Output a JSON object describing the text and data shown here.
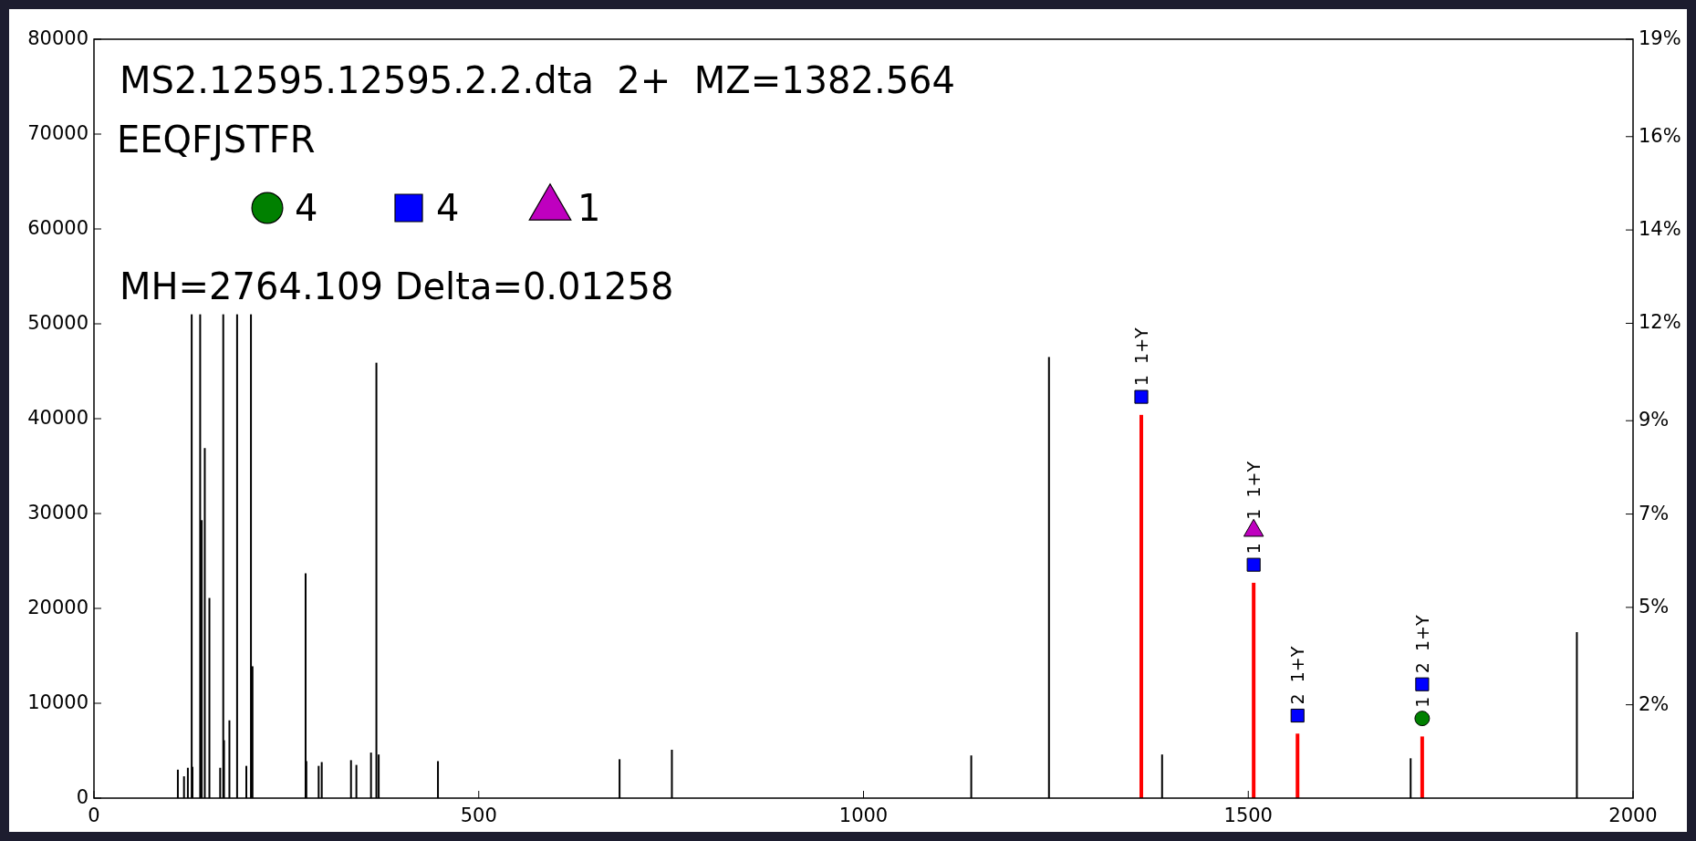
{
  "chart_data": {
    "type": "bar",
    "title": "MS2.12595.12595.2.2.dta  2+  MZ=1382.564",
    "subtitle": "EEQFJSTFR",
    "annotations": [
      "MH=2764.109 Delta=0.01258",
      {
        "text": "1  1+Y",
        "x": 1361,
        "y": 42300
      },
      {
        "text": "1  1+Y",
        "x": 1507,
        "y": 28200
      },
      {
        "text": "1",
        "x": 1507,
        "y": 24600
      },
      {
        "text": "2  1+Y",
        "x": 1564,
        "y": 8700
      },
      {
        "text": "2  1+Y",
        "x": 1726,
        "y": 12000
      },
      {
        "text": "1",
        "x": 1726,
        "y": 8400
      }
    ],
    "xlim": [
      0,
      2000
    ],
    "xticks": [
      0,
      500,
      1000,
      1500,
      2000
    ],
    "ylim": [
      0,
      80000
    ],
    "yticks": [
      0,
      10000,
      20000,
      30000,
      40000,
      50000,
      60000,
      70000,
      80000
    ],
    "y2lim": [
      0,
      18.7
    ],
    "y2ticks": [
      {
        "value": 2.3,
        "label": "2%"
      },
      {
        "value": 4.7,
        "label": "5%"
      },
      {
        "value": 7.0,
        "label": "7%"
      },
      {
        "value": 9.3,
        "label": "9%"
      },
      {
        "value": 11.7,
        "label": "12%"
      },
      {
        "value": 14.0,
        "label": "14%"
      },
      {
        "value": 16.3,
        "label": "16%"
      },
      {
        "value": 18.7,
        "label": "19%"
      }
    ],
    "legend": "top left",
    "series": [
      {
        "color": "#000000",
        "x": [
          109,
          117,
          122,
          127,
          128,
          138,
          140,
          144,
          150,
          164,
          168,
          169,
          176,
          186,
          198,
          204,
          206,
          275,
          276,
          292,
          296,
          334,
          341,
          360,
          367,
          370,
          447,
          683,
          751,
          1140,
          1241,
          1388,
          1711,
          1927
        ],
        "values": [
          3000,
          2300,
          3200,
          51000,
          3300,
          51000,
          29300,
          36900,
          21100,
          3200,
          51000,
          6100,
          8200,
          51000,
          3400,
          51000,
          13900,
          23700,
          3900,
          3400,
          3800,
          4000,
          3500,
          4800,
          45900,
          4600,
          3900,
          4100,
          5100,
          4500,
          46500,
          4600,
          4200,
          17500
        ]
      },
      {
        "color": "#ff0000",
        "x": [
          1361,
          1507,
          1564,
          1726
        ],
        "values": [
          40400,
          22700,
          6800,
          6500
        ]
      },
      {
        "type": "scatter",
        "name": "4",
        "color": "#008000",
        "marker": "circle",
        "x": [
          1726
        ],
        "values": [
          8400
        ]
      },
      {
        "type": "scatter",
        "name": "4",
        "color": "#0000ff",
        "marker": "square",
        "x": [
          1361,
          1507,
          1564,
          1726
        ],
        "values": [
          42300,
          24600,
          8700,
          12000
        ]
      },
      {
        "type": "scatter",
        "name": "1",
        "color": "#bf00bf",
        "marker": "triangle",
        "x": [
          1507
        ],
        "values": [
          28200
        ]
      }
    ]
  }
}
